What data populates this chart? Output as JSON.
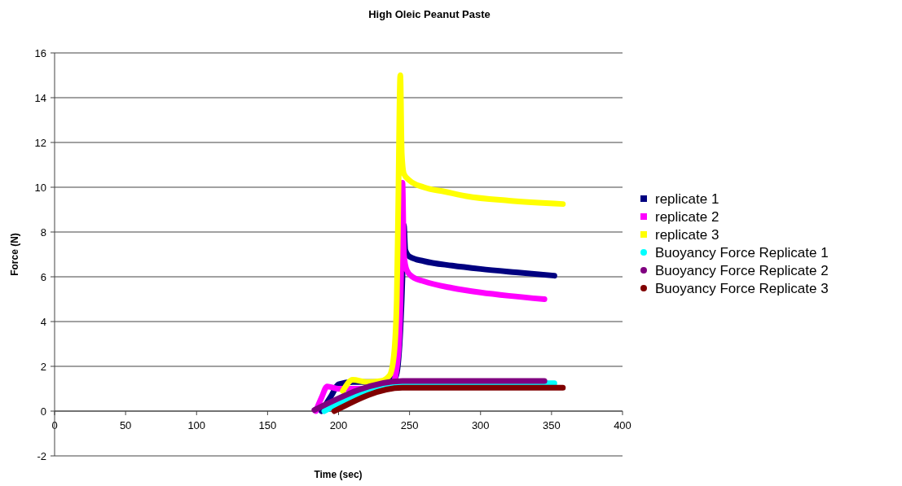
{
  "chart_data": {
    "type": "line",
    "title": "High Oleic Peanut Paste",
    "xlabel": "Time (sec)",
    "ylabel": "Force (N)",
    "xlim": [
      0,
      400
    ],
    "xticks": [
      0,
      50,
      100,
      150,
      200,
      250,
      300,
      350,
      400
    ],
    "ylim": [
      -2,
      16
    ],
    "yticks": [
      -2,
      0,
      2,
      4,
      6,
      8,
      10,
      12,
      14,
      16
    ],
    "grid": "y",
    "legend": "right",
    "series": [
      {
        "name": "replicate 1",
        "color": "#000080",
        "x": [
          188,
          195,
          200,
          210,
          230,
          240,
          243,
          245,
          246,
          247,
          250,
          260,
          280,
          300,
          325,
          352
        ],
        "values": [
          0,
          0.7,
          1.2,
          1.3,
          1.3,
          1.5,
          3,
          6,
          8.3,
          7.2,
          6.9,
          6.7,
          6.5,
          6.35,
          6.2,
          6.05
        ]
      },
      {
        "name": "replicate 2",
        "color": "#ff00ff",
        "x": [
          184,
          188,
          192,
          200,
          220,
          238,
          242,
          244,
          245,
          246,
          248,
          252,
          260,
          280,
          300,
          320,
          345
        ],
        "values": [
          0,
          0.6,
          1.1,
          1.0,
          1.0,
          1.2,
          2.5,
          6,
          10.2,
          7,
          6.3,
          6,
          5.8,
          5.5,
          5.3,
          5.15,
          5.0
        ]
      },
      {
        "name": "replicate 3",
        "color": "#ffff00",
        "x": [
          203,
          210,
          220,
          230,
          236,
          239,
          241,
          242,
          243.5,
          244.5,
          246,
          250,
          260,
          275,
          290,
          320,
          358
        ],
        "values": [
          0.9,
          1.4,
          1.3,
          1.35,
          1.6,
          2.5,
          5,
          9,
          15,
          11.5,
          10.6,
          10.3,
          10,
          9.8,
          9.6,
          9.4,
          9.25
        ]
      },
      {
        "name": "Buoyancy Force Replicate 1",
        "color": "#00ffff",
        "x": [
          190,
          245,
          352
        ],
        "values": [
          0,
          1.25,
          1.25
        ]
      },
      {
        "name": "Buoyancy Force Replicate 2",
        "color": "#800080",
        "x": [
          183,
          245,
          345
        ],
        "values": [
          0.05,
          1.35,
          1.35
        ]
      },
      {
        "name": "Buoyancy Force Replicate 3",
        "color": "#800000",
        "x": [
          197,
          245,
          358
        ],
        "values": [
          0,
          1.05,
          1.05
        ]
      }
    ]
  }
}
